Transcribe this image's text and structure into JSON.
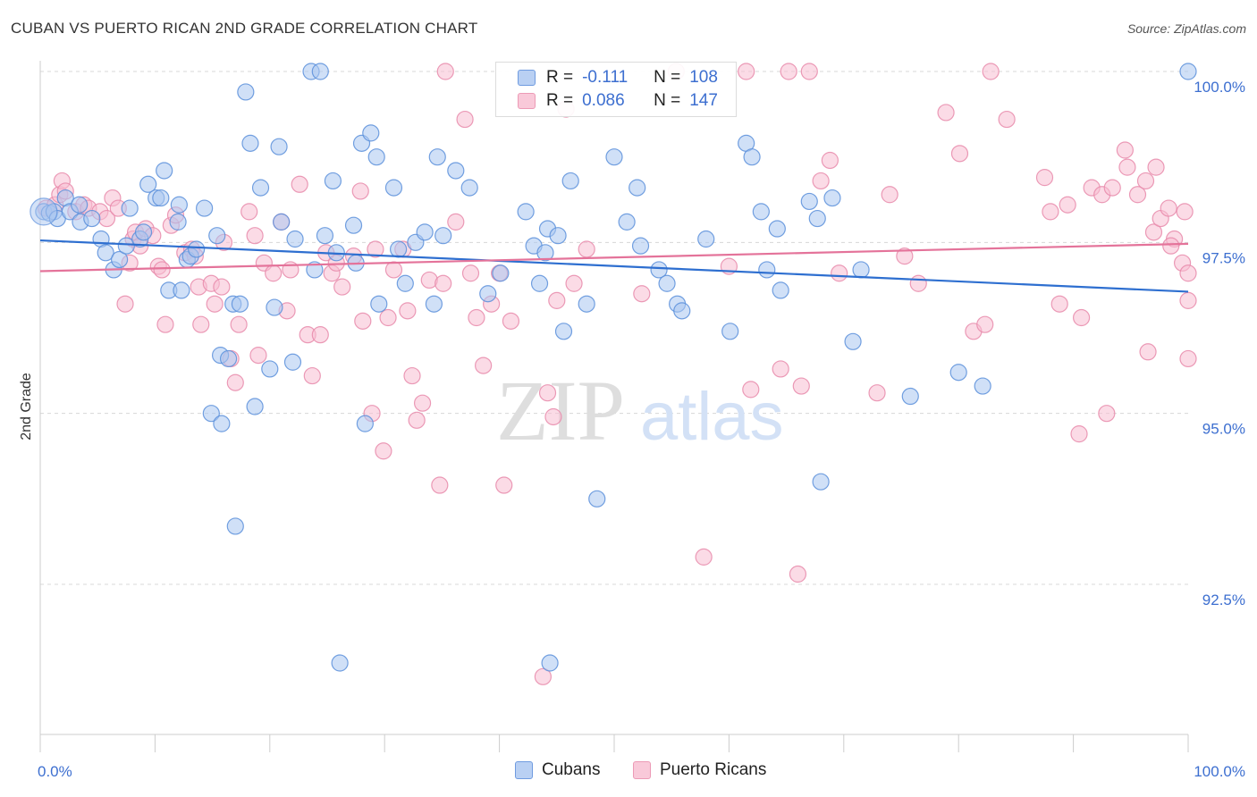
{
  "header": {
    "title": "CUBAN VS PUERTO RICAN 2ND GRADE CORRELATION CHART",
    "source": "Source: ZipAtlas.com"
  },
  "watermark": {
    "zip": "ZIP",
    "atlas": "atlas"
  },
  "legend": {
    "r_label": "R =",
    "n_label": "N =",
    "rows": [
      {
        "r": "-0.111",
        "n": "108"
      },
      {
        "r": "0.086",
        "n": "147"
      }
    ]
  },
  "colors": {
    "cubans_fill": "#a9c6f0",
    "cubans_stroke": "#5b8fdb",
    "cubans_line": "#2e6fd0",
    "pr_fill": "#f7bed1",
    "pr_stroke": "#e88aaa",
    "pr_line": "#e4739a",
    "grid": "#d8d8d8",
    "tick_text": "#3d6fd0"
  },
  "chart_data": {
    "type": "scatter",
    "title": "CUBAN VS PUERTO RICAN 2ND GRADE CORRELATION CHART",
    "xlabel": "",
    "ylabel": "2nd Grade",
    "xlim": [
      0,
      100
    ],
    "ylim": [
      89.5,
      100.35
    ],
    "x_tick_labels": [
      {
        "value": 0,
        "label": "0.0%"
      },
      {
        "value": 100,
        "label": "100.0%"
      }
    ],
    "y_tick_labels": [
      {
        "value": 100,
        "label": "100.0%"
      },
      {
        "value": 97.5,
        "label": "97.5%"
      },
      {
        "value": 95,
        "label": "95.0%"
      },
      {
        "value": 92.5,
        "label": "92.5%"
      }
    ],
    "grid": true,
    "legend_position": "bottom-center",
    "series": [
      {
        "name": "Cubans",
        "trend": {
          "x": [
            0,
            100
          ],
          "y": [
            97.53,
            96.78
          ]
        },
        "points": [
          [
            0.3,
            97.95
          ],
          [
            0.8,
            97.93
          ],
          [
            1.2,
            97.95
          ],
          [
            1.5,
            97.85
          ],
          [
            2.2,
            98.15
          ],
          [
            2.6,
            97.95
          ],
          [
            3.4,
            98.05
          ],
          [
            3.5,
            97.8
          ],
          [
            4.5,
            97.85
          ],
          [
            5.3,
            97.55
          ],
          [
            5.7,
            97.35
          ],
          [
            6.4,
            97.1
          ],
          [
            6.9,
            97.25
          ],
          [
            7.5,
            97.45
          ],
          [
            7.8,
            98.0
          ],
          [
            8.7,
            97.55
          ],
          [
            9.0,
            97.65
          ],
          [
            9.4,
            98.35
          ],
          [
            10.1,
            98.15
          ],
          [
            10.5,
            98.15
          ],
          [
            10.8,
            98.55
          ],
          [
            11.2,
            96.8
          ],
          [
            12.0,
            97.8
          ],
          [
            12.1,
            98.05
          ],
          [
            12.3,
            96.8
          ],
          [
            12.8,
            97.25
          ],
          [
            13.1,
            97.3
          ],
          [
            13.6,
            97.4
          ],
          [
            14.3,
            98.0
          ],
          [
            14.9,
            95.0
          ],
          [
            15.4,
            97.6
          ],
          [
            15.7,
            95.85
          ],
          [
            15.8,
            94.85
          ],
          [
            16.4,
            95.8
          ],
          [
            16.8,
            96.6
          ],
          [
            17.0,
            93.35
          ],
          [
            17.4,
            96.6
          ],
          [
            17.9,
            99.7
          ],
          [
            18.3,
            98.95
          ],
          [
            18.7,
            95.1
          ],
          [
            19.2,
            98.3
          ],
          [
            20.0,
            95.65
          ],
          [
            20.4,
            96.55
          ],
          [
            20.8,
            98.9
          ],
          [
            21.0,
            97.8
          ],
          [
            22.0,
            95.75
          ],
          [
            22.2,
            97.55
          ],
          [
            23.6,
            100.0
          ],
          [
            23.9,
            97.1
          ],
          [
            24.4,
            100.0
          ],
          [
            24.8,
            97.6
          ],
          [
            25.5,
            98.4
          ],
          [
            25.8,
            97.35
          ],
          [
            26.1,
            91.35
          ],
          [
            27.3,
            97.75
          ],
          [
            27.5,
            97.2
          ],
          [
            28.0,
            98.95
          ],
          [
            28.3,
            94.85
          ],
          [
            28.8,
            99.1
          ],
          [
            29.3,
            98.75
          ],
          [
            29.5,
            96.6
          ],
          [
            30.8,
            98.3
          ],
          [
            31.2,
            97.4
          ],
          [
            31.8,
            96.9
          ],
          [
            32.7,
            97.5
          ],
          [
            33.5,
            97.65
          ],
          [
            34.3,
            96.6
          ],
          [
            34.6,
            98.75
          ],
          [
            35.1,
            97.6
          ],
          [
            36.2,
            98.55
          ],
          [
            37.4,
            98.3
          ],
          [
            39.0,
            96.75
          ],
          [
            40.1,
            97.05
          ],
          [
            42.3,
            97.95
          ],
          [
            43.0,
            97.45
          ],
          [
            43.5,
            96.9
          ],
          [
            44.0,
            97.35
          ],
          [
            44.2,
            97.7
          ],
          [
            44.4,
            91.35
          ],
          [
            45.1,
            97.6
          ],
          [
            45.6,
            96.2
          ],
          [
            46.2,
            98.4
          ],
          [
            47.6,
            96.6
          ],
          [
            48.5,
            93.75
          ],
          [
            50.0,
            98.75
          ],
          [
            51.1,
            97.8
          ],
          [
            52.0,
            98.3
          ],
          [
            52.3,
            97.45
          ],
          [
            53.9,
            97.1
          ],
          [
            54.6,
            96.9
          ],
          [
            55.5,
            96.6
          ],
          [
            55.9,
            96.5
          ],
          [
            58.0,
            97.55
          ],
          [
            60.1,
            96.2
          ],
          [
            61.5,
            98.95
          ],
          [
            62.0,
            98.75
          ],
          [
            62.8,
            97.95
          ],
          [
            63.3,
            97.1
          ],
          [
            64.2,
            97.7
          ],
          [
            64.5,
            96.8
          ],
          [
            67.0,
            98.1
          ],
          [
            67.7,
            97.85
          ],
          [
            68.0,
            94.0
          ],
          [
            69.0,
            98.15
          ],
          [
            70.8,
            96.05
          ],
          [
            71.5,
            97.1
          ],
          [
            75.8,
            95.25
          ],
          [
            80.0,
            95.6
          ],
          [
            82.1,
            95.4
          ],
          [
            100.0,
            100.0
          ]
        ]
      },
      {
        "name": "Puerto Ricans",
        "trend": {
          "x": [
            0,
            100
          ],
          "y": [
            97.08,
            97.48
          ]
        },
        "points": [
          [
            0.5,
            98.0
          ],
          [
            1.3,
            98.05
          ],
          [
            1.7,
            98.2
          ],
          [
            1.9,
            98.4
          ],
          [
            2.2,
            98.25
          ],
          [
            3.1,
            97.95
          ],
          [
            3.8,
            98.05
          ],
          [
            4.2,
            98.0
          ],
          [
            5.2,
            97.95
          ],
          [
            5.8,
            97.85
          ],
          [
            6.3,
            98.15
          ],
          [
            6.8,
            98.0
          ],
          [
            7.4,
            96.6
          ],
          [
            7.8,
            97.2
          ],
          [
            8.1,
            97.55
          ],
          [
            8.3,
            97.65
          ],
          [
            8.7,
            97.45
          ],
          [
            9.2,
            97.7
          ],
          [
            9.8,
            97.6
          ],
          [
            10.3,
            97.15
          ],
          [
            10.6,
            97.1
          ],
          [
            10.9,
            96.3
          ],
          [
            11.4,
            97.75
          ],
          [
            11.8,
            97.9
          ],
          [
            12.6,
            97.35
          ],
          [
            13.2,
            97.4
          ],
          [
            13.5,
            97.3
          ],
          [
            13.8,
            96.85
          ],
          [
            14.0,
            96.3
          ],
          [
            14.9,
            96.9
          ],
          [
            15.2,
            96.6
          ],
          [
            15.8,
            96.85
          ],
          [
            16.0,
            97.5
          ],
          [
            16.6,
            95.8
          ],
          [
            17.0,
            95.45
          ],
          [
            17.3,
            96.3
          ],
          [
            18.2,
            97.95
          ],
          [
            18.7,
            97.6
          ],
          [
            19.0,
            95.85
          ],
          [
            19.5,
            97.2
          ],
          [
            20.3,
            97.05
          ],
          [
            21.0,
            97.8
          ],
          [
            21.5,
            96.5
          ],
          [
            21.8,
            97.1
          ],
          [
            22.6,
            98.35
          ],
          [
            23.3,
            96.15
          ],
          [
            23.7,
            95.55
          ],
          [
            24.4,
            96.15
          ],
          [
            24.9,
            97.35
          ],
          [
            25.4,
            97.05
          ],
          [
            25.8,
            97.2
          ],
          [
            26.3,
            96.85
          ],
          [
            27.3,
            97.3
          ],
          [
            27.9,
            98.25
          ],
          [
            28.1,
            96.35
          ],
          [
            28.9,
            95.0
          ],
          [
            29.2,
            97.4
          ],
          [
            29.9,
            94.45
          ],
          [
            30.3,
            96.4
          ],
          [
            30.8,
            97.1
          ],
          [
            31.6,
            97.4
          ],
          [
            32.0,
            96.5
          ],
          [
            32.4,
            95.55
          ],
          [
            32.8,
            94.9
          ],
          [
            33.3,
            95.15
          ],
          [
            33.9,
            96.95
          ],
          [
            34.8,
            93.95
          ],
          [
            35.1,
            96.9
          ],
          [
            35.3,
            100.0
          ],
          [
            36.2,
            97.8
          ],
          [
            37.0,
            99.3
          ],
          [
            37.5,
            97.05
          ],
          [
            38.0,
            96.4
          ],
          [
            38.6,
            95.7
          ],
          [
            39.3,
            96.6
          ],
          [
            40.0,
            97.05
          ],
          [
            40.4,
            93.95
          ],
          [
            41.0,
            96.35
          ],
          [
            43.8,
            91.15
          ],
          [
            44.2,
            95.3
          ],
          [
            44.7,
            94.95
          ],
          [
            45.0,
            96.65
          ],
          [
            45.8,
            99.45
          ],
          [
            46.5,
            96.9
          ],
          [
            47.6,
            97.4
          ],
          [
            52.4,
            96.75
          ],
          [
            55.4,
            100.0
          ],
          [
            57.8,
            92.9
          ],
          [
            60.0,
            97.15
          ],
          [
            61.5,
            100.0
          ],
          [
            61.9,
            95.35
          ],
          [
            64.5,
            95.65
          ],
          [
            65.2,
            100.0
          ],
          [
            66.0,
            92.65
          ],
          [
            66.3,
            95.4
          ],
          [
            67.0,
            100.0
          ],
          [
            68.0,
            98.4
          ],
          [
            68.8,
            98.7
          ],
          [
            69.6,
            97.05
          ],
          [
            72.9,
            95.3
          ],
          [
            74.0,
            98.2
          ],
          [
            75.3,
            97.3
          ],
          [
            76.5,
            96.9
          ],
          [
            78.9,
            99.4
          ],
          [
            80.1,
            98.8
          ],
          [
            81.3,
            96.2
          ],
          [
            82.3,
            96.3
          ],
          [
            82.8,
            100.0
          ],
          [
            84.2,
            99.3
          ],
          [
            87.5,
            98.45
          ],
          [
            88.0,
            97.95
          ],
          [
            88.8,
            96.6
          ],
          [
            89.5,
            98.05
          ],
          [
            90.5,
            94.7
          ],
          [
            90.7,
            96.4
          ],
          [
            91.6,
            98.3
          ],
          [
            92.5,
            98.2
          ],
          [
            92.9,
            95.0
          ],
          [
            93.4,
            98.3
          ],
          [
            94.5,
            98.85
          ],
          [
            94.7,
            98.6
          ],
          [
            95.6,
            98.2
          ],
          [
            96.3,
            98.4
          ],
          [
            96.5,
            95.9
          ],
          [
            97.0,
            97.65
          ],
          [
            97.2,
            98.6
          ],
          [
            97.6,
            97.85
          ],
          [
            98.3,
            98.0
          ],
          [
            98.8,
            97.55
          ],
          [
            99.5,
            97.2
          ],
          [
            100.0,
            97.05
          ],
          [
            100.0,
            96.65
          ],
          [
            100.0,
            95.8
          ],
          [
            99.7,
            97.95
          ],
          [
            98.5,
            97.45
          ]
        ]
      }
    ]
  }
}
